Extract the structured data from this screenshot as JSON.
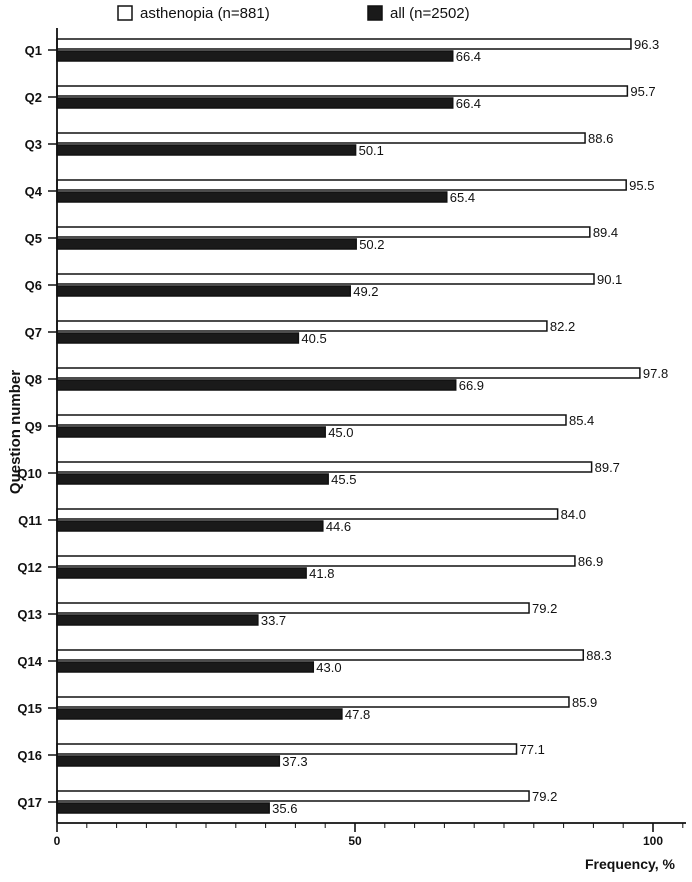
{
  "chart_data": {
    "type": "bar",
    "orientation": "horizontal",
    "categories": [
      "Q1",
      "Q2",
      "Q3",
      "Q4",
      "Q5",
      "Q6",
      "Q7",
      "Q8",
      "Q9",
      "Q10",
      "Q11",
      "Q12",
      "Q13",
      "Q14",
      "Q15",
      "Q16",
      "Q17"
    ],
    "series": [
      {
        "name": "asthenopia (n=881)",
        "color": "#ffffff",
        "values": [
          96.3,
          95.7,
          88.6,
          95.5,
          89.4,
          90.1,
          82.2,
          97.8,
          85.4,
          89.7,
          84.0,
          86.9,
          79.2,
          88.3,
          85.9,
          77.1,
          79.2
        ],
        "labels": [
          "96.3",
          "95.7",
          "88.6",
          "95.5",
          "89.4",
          "90.1",
          "82.2",
          "97.8",
          "85.4",
          "89.7",
          "84.0",
          "86.9",
          "79.2",
          "88.3",
          "85.9",
          "77.1",
          "79.2"
        ]
      },
      {
        "name": "all (n=2502)",
        "color": "#1a1a1a",
        "values": [
          66.4,
          66.4,
          50.1,
          65.4,
          50.2,
          49.2,
          40.5,
          66.9,
          45.0,
          45.5,
          44.6,
          41.8,
          33.7,
          43.0,
          47.8,
          37.3,
          35.6
        ],
        "labels": [
          "66.4",
          "66.4",
          "50.1",
          "65.4",
          "50.2",
          "49.2",
          "40.5",
          "66.9",
          "45.0",
          "45.5",
          "44.6",
          "41.8",
          "33.7",
          "43.0",
          "47.8",
          "37.3",
          "35.6"
        ]
      }
    ],
    "xlabel": "Frequency, %",
    "ylabel": "Question number",
    "xlim": [
      0,
      100
    ],
    "xticks": [
      "0",
      "50",
      "100"
    ],
    "legend_position": "top",
    "grid": false
  }
}
